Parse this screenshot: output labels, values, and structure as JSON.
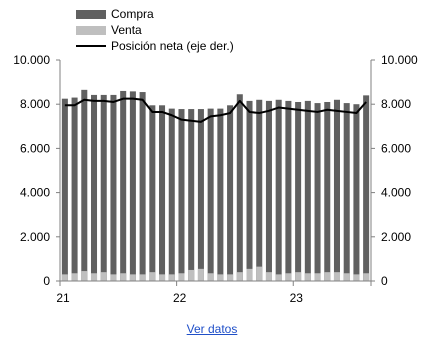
{
  "chart_data": {
    "type": "bar",
    "x_labels": [
      "21",
      "22",
      "23"
    ],
    "months_per_year": 12,
    "y_left": {
      "ylim": [
        0,
        10000
      ],
      "ticks": [
        "0",
        "2.000",
        "4.000",
        "6.000",
        "8.000",
        "10.000"
      ]
    },
    "y_right": {
      "ylim": [
        0,
        10000
      ],
      "ticks": [
        "0",
        "2.000",
        "4.000",
        "6.000",
        "8.000",
        "10.000"
      ]
    },
    "series": [
      {
        "name": "Compra",
        "kind": "bar",
        "color": "#606060",
        "values": [
          8250,
          8300,
          8650,
          8420,
          8420,
          8420,
          8600,
          8580,
          8550,
          7950,
          7950,
          7800,
          7780,
          7780,
          7780,
          7800,
          7800,
          7950,
          8450,
          8150,
          8200,
          8150,
          8200,
          8150,
          8100,
          8150,
          8050,
          8100,
          8200,
          8050,
          8000,
          8400
        ]
      },
      {
        "name": "Venta",
        "kind": "bar",
        "color": "#bfbfbf",
        "values": [
          300,
          350,
          450,
          350,
          400,
          300,
          350,
          300,
          300,
          400,
          300,
          300,
          350,
          500,
          550,
          350,
          300,
          300,
          400,
          550,
          650,
          400,
          300,
          350,
          400,
          350,
          350,
          400,
          400,
          350,
          300,
          350
        ]
      },
      {
        "name": "Posición neta (eje der.)",
        "kind": "line",
        "color": "#000000",
        "axis": "right",
        "values": [
          7950,
          7950,
          8200,
          8150,
          8150,
          8100,
          8250,
          8250,
          8200,
          7650,
          7650,
          7500,
          7300,
          7250,
          7200,
          7450,
          7500,
          7600,
          8150,
          7650,
          7600,
          7700,
          7850,
          7800,
          7750,
          7700,
          7650,
          7750,
          7700,
          7650,
          7600,
          8100
        ]
      }
    ]
  },
  "link": {
    "label": "Ver datos"
  }
}
